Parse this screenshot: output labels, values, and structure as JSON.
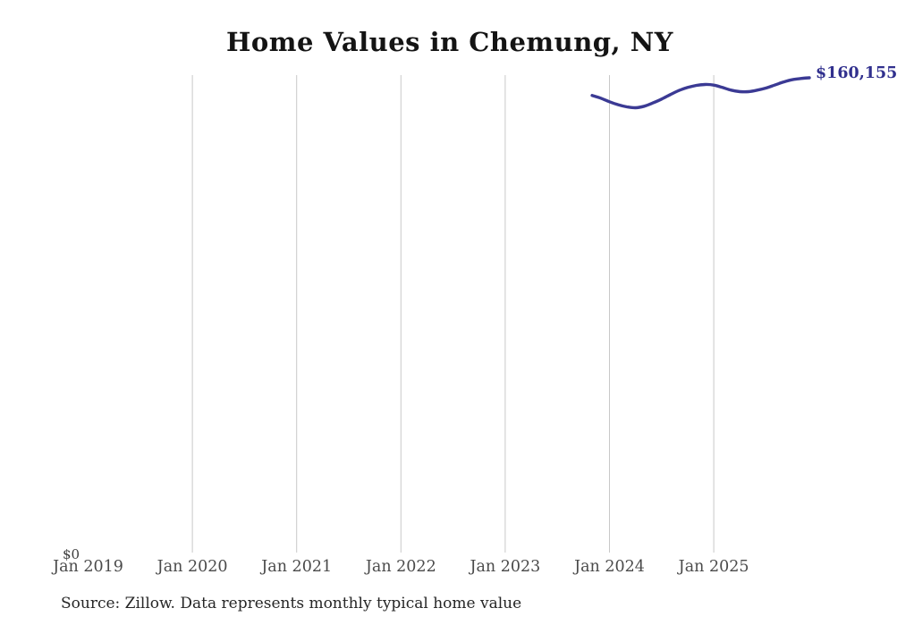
{
  "title": "Home Values in Chemung, NY",
  "y_axis": {
    "zero_label": "$0"
  },
  "x_axis": {
    "ticks": [
      "Jan 2019",
      "Jan 2020",
      "Jan 2021",
      "Jan 2022",
      "Jan 2023",
      "Jan 2024",
      "Jan 2025"
    ]
  },
  "end_label": "$160,155",
  "source": "Source: Zillow. Data represents monthly typical home value",
  "colors": {
    "line": "#3b3a94",
    "end_label": "#31308e",
    "grid": "#c9c9c9",
    "title": "#141414",
    "axis_text": "#4a4a4a",
    "source_text": "#262626"
  },
  "chart_data": {
    "type": "line",
    "title": "Home Values in Chemung, NY",
    "series_name": "Typical home value",
    "x": [
      "Nov 2023",
      "Dec 2023",
      "Jan 2024",
      "Feb 2024",
      "Mar 2024",
      "Apr 2024",
      "May 2024",
      "Jun 2024",
      "Jul 2024",
      "Aug 2024",
      "Sep 2024",
      "Oct 2024",
      "Nov 2024",
      "Dec 2024",
      "Jan 2025",
      "Feb 2025",
      "Mar 2025",
      "Apr 2025",
      "May 2025",
      "Jun 2025",
      "Jul 2025",
      "Aug 2025",
      "Sep 2025",
      "Oct 2025",
      "Nov 2025",
      "Dec 2025"
    ],
    "values": [
      154200,
      153300,
      152100,
      151100,
      150400,
      150100,
      150600,
      151700,
      153000,
      154500,
      155900,
      156900,
      157600,
      157900,
      157700,
      156900,
      156000,
      155500,
      155500,
      156000,
      156700,
      157700,
      158700,
      159500,
      159900,
      160155
    ],
    "end_annotation": "$160,155",
    "xlabel": "",
    "ylabel": "",
    "ylim": [
      0,
      165000
    ],
    "xtick_labels": [
      "Jan 2019",
      "Jan 2020",
      "Jan 2021",
      "Jan 2022",
      "Jan 2023",
      "Jan 2024",
      "Jan 2025"
    ],
    "grid": "vertical-only",
    "legend": "none",
    "annotation_note": "line starts Nov 2023; value label clipped at right edge"
  }
}
